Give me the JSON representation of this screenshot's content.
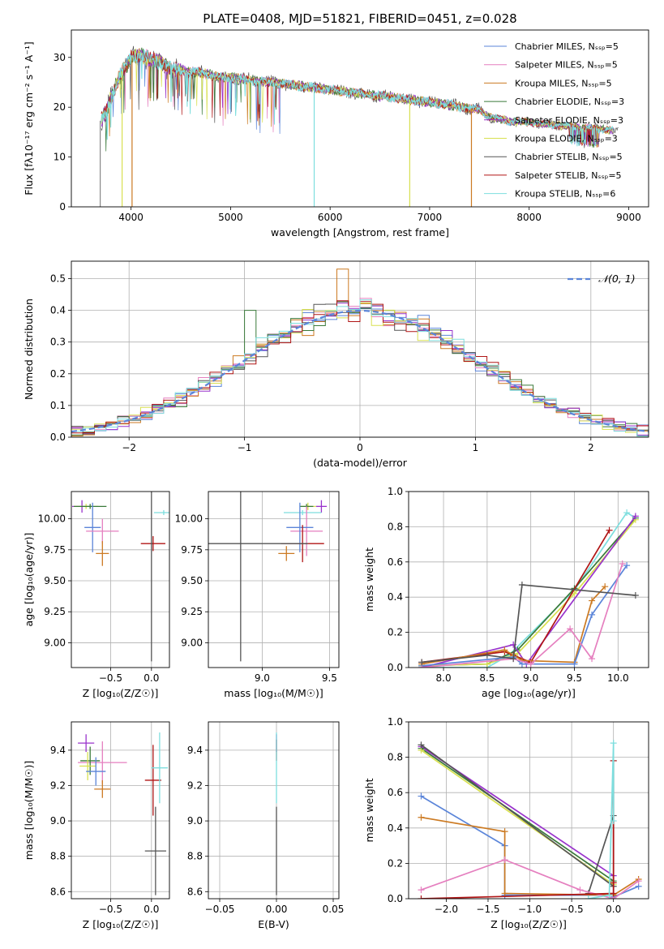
{
  "chart_data": [
    {
      "id": "spectrum",
      "type": "line",
      "title": "PLATE=0408, MJD=51821, FIBERID=0451, z=0.028",
      "xlabel": "wavelength [Angstrom, rest frame]",
      "ylabel": "Flux [fλ10⁻¹⁷ erg cm⁻² s⁻¹ A⁻¹]",
      "xlim": [
        3400,
        9200
      ],
      "ylim": [
        0,
        35.5
      ],
      "xticks": [
        4000,
        5000,
        6000,
        7000,
        8000,
        9000
      ],
      "yticks": [
        0,
        10,
        20,
        30
      ],
      "grid": false,
      "legend_position": "upper-right",
      "series": [
        {
          "name": "Chabrier MILES, Nₛₛₚ=5",
          "color": "#5b85d9"
        },
        {
          "name": "Salpeter MILES, Nₛₛₚ=5",
          "color": "#e57fbf"
        },
        {
          "name": "Kroupa MILES, Nₛₛₚ=5",
          "color": "#cc7a22"
        },
        {
          "name": "Chabrier ELODIE, Nₛₛₚ=3",
          "color": "#3a7a3a"
        },
        {
          "name": "Salpeter ELODIE, Nₛₛₚ=3",
          "color": "#9933cc"
        },
        {
          "name": "Kroupa ELODIE, Nₛₛₚ=3",
          "color": "#d8e050"
        },
        {
          "name": "Chabrier STELIB, Nₛₛₚ=5",
          "color": "#555555"
        },
        {
          "name": "Salpeter STELIB, Nₛₛₚ=5",
          "color": "#b01515"
        },
        {
          "name": "Kroupa STELIB, Nₛₛₚ=6",
          "color": "#7ddede"
        }
      ],
      "continuum": {
        "x": [
          3680,
          3750,
          3800,
          3900,
          3950,
          4000,
          4100,
          4200,
          4300,
          4400,
          4500,
          4600,
          4700,
          4800,
          4900,
          5000,
          5200,
          5400,
          5600,
          5800,
          6000,
          6200,
          6400,
          6600,
          6800,
          7000,
          7200,
          7400,
          7500,
          7600,
          7800,
          8000,
          8200,
          8400,
          8600,
          8800,
          8900
        ],
        "y": [
          17,
          19,
          22,
          27,
          28,
          30,
          30.5,
          29.5,
          29,
          27.5,
          27.5,
          27,
          27,
          26.5,
          26,
          26,
          25.5,
          25,
          24.5,
          24,
          23.5,
          23,
          22.5,
          22,
          21.5,
          21,
          20.5,
          19.8,
          19.5,
          18,
          17.2,
          17,
          16.5,
          16.2,
          15.8,
          15.5,
          15
        ]
      },
      "dropouts": [
        {
          "x": 3690,
          "color": "#888888"
        },
        {
          "x": 3910,
          "color": "#d8e050"
        },
        {
          "x": 4010,
          "color": "#cc7a22"
        },
        {
          "x": 5840,
          "color": "#7ddede"
        },
        {
          "x": 6800,
          "color": "#d8e050"
        },
        {
          "x": 7420,
          "color": "#cc7a22"
        }
      ]
    },
    {
      "id": "residuals",
      "type": "histogram",
      "xlabel": "(data-model)/error",
      "ylabel": "Normed distribution",
      "xlim": [
        -2.5,
        2.5
      ],
      "ylim": [
        0,
        0.555
      ],
      "xticks": [
        -2,
        -1,
        0,
        1,
        2
      ],
      "yticks": [
        0.0,
        0.1,
        0.2,
        0.3,
        0.4,
        0.5
      ],
      "grid": true,
      "legend_position": "upper-right",
      "reference_curve": {
        "name": "𝒩(0, 1)",
        "mean": 0,
        "sigma": 1,
        "color": "#5b85d9"
      },
      "bin_width": 0.1
    },
    {
      "id": "age-vs-Z",
      "type": "scatter",
      "xlabel": "Z [log₁₀(Z/Z☉)]",
      "ylabel": "age  [log₁₀(age/yr)]",
      "xlim": [
        -0.98,
        0.22
      ],
      "ylim": [
        8.8,
        10.22
      ],
      "xticks": [
        -0.5,
        0.0
      ],
      "yticks": [
        9.0,
        9.25,
        9.5,
        9.75,
        10.0
      ],
      "grid": true,
      "points": [
        {
          "x": -0.85,
          "y": 10.1,
          "xerr": 0.12,
          "yerr": 0.05,
          "color": "#9933cc"
        },
        {
          "x": -0.8,
          "y": 10.1,
          "xerr": 0.15,
          "yerr": 0.02,
          "color": "#d8e050"
        },
        {
          "x": -0.75,
          "y": 10.1,
          "xerr": 0.2,
          "yerr": 0.02,
          "color": "#3a7a3a"
        },
        {
          "x": -0.72,
          "y": 9.93,
          "xerr": 0.1,
          "yerr": 0.2,
          "color": "#5b85d9"
        },
        {
          "x": -0.6,
          "y": 9.9,
          "xerr": 0.2,
          "yerr": 0.1,
          "color": "#e57fbf"
        },
        {
          "x": -0.6,
          "y": 9.72,
          "xerr": 0.08,
          "yerr": 0.1,
          "color": "#cc7a22"
        },
        {
          "x": 0.02,
          "y": 9.8,
          "xerr": 0.15,
          "yerr": 0.06,
          "color": "#b01515"
        },
        {
          "x": 0.0,
          "y": 9.8,
          "xerr": 0.01,
          "yerr": 0.95,
          "color": "#555555"
        },
        {
          "x": 0.15,
          "y": 10.05,
          "xerr": 0.12,
          "yerr": 0.02,
          "color": "#7ddede"
        }
      ]
    },
    {
      "id": "age-vs-mass",
      "type": "scatter",
      "xlabel": "mass [log₁₀(M/M☉)]",
      "ylabel": "",
      "xlim": [
        8.6,
        9.57
      ],
      "ylim": [
        8.8,
        10.22
      ],
      "xticks": [
        9.0,
        9.5
      ],
      "yticks": [
        9.0,
        9.25,
        9.5,
        9.75,
        10.0
      ],
      "grid": true,
      "points": [
        {
          "x": 9.44,
          "y": 10.1,
          "xerr": 0.04,
          "yerr": 0.05,
          "color": "#9933cc"
        },
        {
          "x": 9.34,
          "y": 10.1,
          "xerr": 0.06,
          "yerr": 0.03,
          "color": "#d8e050"
        },
        {
          "x": 9.33,
          "y": 10.1,
          "xerr": 0.05,
          "yerr": 0.02,
          "color": "#3a7a3a"
        },
        {
          "x": 9.3,
          "y": 10.05,
          "xerr": 0.14,
          "yerr": 0.02,
          "color": "#7ddede"
        },
        {
          "x": 9.33,
          "y": 9.9,
          "xerr": 0.12,
          "yerr": 0.2,
          "color": "#e57fbf"
        },
        {
          "x": 9.28,
          "y": 9.93,
          "xerr": 0.1,
          "yerr": 0.2,
          "color": "#5b85d9"
        },
        {
          "x": 9.18,
          "y": 9.72,
          "xerr": 0.06,
          "yerr": 0.06,
          "color": "#cc7a22"
        },
        {
          "x": 9.3,
          "y": 9.8,
          "xerr": 0.16,
          "yerr": 0.15,
          "color": "#b01515"
        },
        {
          "x": 8.84,
          "y": 9.8,
          "xerr": 0.5,
          "yerr": 0.95,
          "color": "#555555"
        }
      ]
    },
    {
      "id": "mass-weight-vs-age",
      "type": "line",
      "xlabel": "age  [log₁₀(age/yr)]",
      "ylabel": "mass weight",
      "xlim": [
        7.6,
        10.35
      ],
      "ylim": [
        0,
        1.0
      ],
      "xticks": [
        8.0,
        8.5,
        9.0,
        9.5,
        10.0
      ],
      "yticks": [
        0.0,
        0.2,
        0.4,
        0.6,
        0.8,
        1.0
      ],
      "grid": true,
      "series": [
        {
          "color": "#7ddede",
          "x": [
            7.75,
            8.5,
            8.75,
            9.5,
            10.1,
            10.2
          ],
          "y": [
            0.0,
            0.0,
            0.07,
            0.44,
            0.88,
            0.85
          ]
        },
        {
          "color": "#3a7a3a",
          "x": [
            7.75,
            8.5,
            8.85,
            9.5,
            10.2
          ],
          "y": [
            0.01,
            0.02,
            0.1,
            0.45,
            0.85
          ]
        },
        {
          "color": "#d8e050",
          "x": [
            7.75,
            8.5,
            8.85,
            9.5,
            10.2
          ],
          "y": [
            0.01,
            0.02,
            0.08,
            0.42,
            0.84
          ]
        },
        {
          "color": "#9933cc",
          "x": [
            7.75,
            8.8,
            8.95,
            10.2
          ],
          "y": [
            0.0,
            0.13,
            0.02,
            0.86
          ]
        },
        {
          "color": "#b01515",
          "x": [
            7.75,
            8.7,
            8.8,
            9.0,
            9.9
          ],
          "y": [
            0.03,
            0.09,
            0.07,
            0.03,
            0.78
          ]
        },
        {
          "color": "#cc7a22",
          "x": [
            7.75,
            8.7,
            8.9,
            9.5,
            9.7,
            9.85
          ],
          "y": [
            0.02,
            0.1,
            0.04,
            0.03,
            0.38,
            0.46
          ]
        },
        {
          "color": "#5b85d9",
          "x": [
            7.75,
            8.8,
            8.9,
            9.5,
            9.7,
            10.1
          ],
          "y": [
            0.01,
            0.06,
            0.02,
            0.02,
            0.3,
            0.58
          ]
        },
        {
          "color": "#e57fbf",
          "x": [
            7.75,
            8.8,
            9.0,
            9.45,
            9.7,
            10.05
          ],
          "y": [
            0.0,
            0.05,
            0.02,
            0.22,
            0.05,
            0.59
          ]
        },
        {
          "color": "#555555",
          "x": [
            7.75,
            8.5,
            8.8,
            8.9,
            10.2
          ],
          "y": [
            0.03,
            0.07,
            0.05,
            0.47,
            0.41
          ]
        }
      ]
    },
    {
      "id": "mass-vs-Z",
      "type": "scatter",
      "xlabel": "Z [log₁₀(Z/Z☉)]",
      "ylabel": "mass [log₁₀(M/M☉)]",
      "xlim": [
        -0.98,
        0.22
      ],
      "ylim": [
        8.56,
        9.56
      ],
      "xticks": [
        -0.5,
        0.0
      ],
      "yticks": [
        8.6,
        8.8,
        9.0,
        9.2,
        9.4
      ],
      "grid": true,
      "points": [
        {
          "x": -0.8,
          "y": 9.44,
          "xerr": 0.1,
          "yerr": 0.05,
          "color": "#9933cc"
        },
        {
          "x": -0.6,
          "y": 9.33,
          "xerr": 0.3,
          "yerr": 0.12,
          "color": "#e57fbf"
        },
        {
          "x": -0.75,
          "y": 9.34,
          "xerr": 0.12,
          "yerr": 0.08,
          "color": "#3a7a3a"
        },
        {
          "x": -0.78,
          "y": 9.31,
          "xerr": 0.1,
          "yerr": 0.08,
          "color": "#d8e050"
        },
        {
          "x": -0.68,
          "y": 9.28,
          "xerr": 0.12,
          "yerr": 0.08,
          "color": "#5b85d9"
        },
        {
          "x": -0.6,
          "y": 9.18,
          "xerr": 0.1,
          "yerr": 0.05,
          "color": "#cc7a22"
        },
        {
          "x": 0.02,
          "y": 9.23,
          "xerr": 0.1,
          "yerr": 0.2,
          "color": "#b01515"
        },
        {
          "x": 0.1,
          "y": 9.3,
          "xerr": 0.1,
          "yerr": 0.2,
          "color": "#7ddede"
        },
        {
          "x": 0.05,
          "y": 8.83,
          "xerr": 0.13,
          "yerr": 0.25,
          "color": "#555555"
        }
      ]
    },
    {
      "id": "mass-vs-EBV",
      "type": "scatter",
      "xlabel": "E(B-V)",
      "ylabel": "",
      "xlim": [
        -0.06,
        0.055
      ],
      "ylim": [
        8.56,
        9.56
      ],
      "xticks": [
        -0.05,
        0.0,
        0.05
      ],
      "yticks": [
        8.6,
        8.8,
        9.0,
        9.2,
        9.4
      ],
      "grid": true,
      "points": [
        {
          "x": 0.0,
          "y": 9.44,
          "xerr": 0.0,
          "yerr": 0.05,
          "color": "#9933cc"
        },
        {
          "x": 0.0,
          "y": 9.4,
          "xerr": 0.0,
          "yerr": 0.06,
          "color": "#b01515"
        },
        {
          "x": 0.0,
          "y": 9.3,
          "xerr": 0.0,
          "yerr": 0.2,
          "color": "#7ddede"
        },
        {
          "x": 0.0,
          "y": 8.83,
          "xerr": 0.0,
          "yerr": 0.25,
          "color": "#555555"
        }
      ]
    },
    {
      "id": "mass-weight-vs-Z",
      "type": "line",
      "xlabel": "Z [log₁₀(Z/Z☉)]",
      "ylabel": "mass weight",
      "xlim": [
        -2.45,
        0.42
      ],
      "ylim": [
        0,
        1.0
      ],
      "xticks": [
        -2.0,
        -1.5,
        -1.0,
        -0.5,
        0.0
      ],
      "yticks": [
        0.0,
        0.2,
        0.4,
        0.6,
        0.8,
        1.0
      ],
      "grid": true,
      "series": [
        {
          "color": "#9933cc",
          "x": [
            -2.3,
            0.0,
            0.0
          ],
          "y": [
            0.86,
            0.13,
            0.0
          ]
        },
        {
          "color": "#3a7a3a",
          "x": [
            -2.3,
            0.0
          ],
          "y": [
            0.85,
            0.1
          ]
        },
        {
          "color": "#d8e050",
          "x": [
            -2.3,
            0.0
          ],
          "y": [
            0.84,
            0.08
          ]
        },
        {
          "color": "#555555",
          "x": [
            -2.3,
            0.0,
            0.0,
            0.0,
            -0.3
          ],
          "y": [
            0.87,
            0.07,
            0.78,
            0.47,
            0.03
          ]
        },
        {
          "color": "#5b85d9",
          "x": [
            -2.3,
            -1.3,
            -1.3,
            0.0,
            0.0,
            0.3
          ],
          "y": [
            0.58,
            0.3,
            0.02,
            0.02,
            0.01,
            0.07
          ]
        },
        {
          "color": "#cc7a22",
          "x": [
            -2.3,
            -1.3,
            -1.3,
            0.0,
            0.3
          ],
          "y": [
            0.46,
            0.38,
            0.03,
            0.02,
            0.11
          ]
        },
        {
          "color": "#e57fbf",
          "x": [
            -2.3,
            -1.3,
            -0.4,
            0.0,
            0.3
          ],
          "y": [
            0.05,
            0.22,
            0.05,
            0.0,
            0.1
          ]
        },
        {
          "color": "#b01515",
          "x": [
            -2.3,
            0.0,
            0.0,
            0.0
          ],
          "y": [
            0.0,
            0.03,
            0.09,
            0.78
          ]
        },
        {
          "color": "#7ddede",
          "x": [
            -0.3,
            -0.05,
            0.0,
            0.0
          ],
          "y": [
            0.0,
            0.02,
            0.88,
            0.44
          ]
        }
      ]
    }
  ]
}
